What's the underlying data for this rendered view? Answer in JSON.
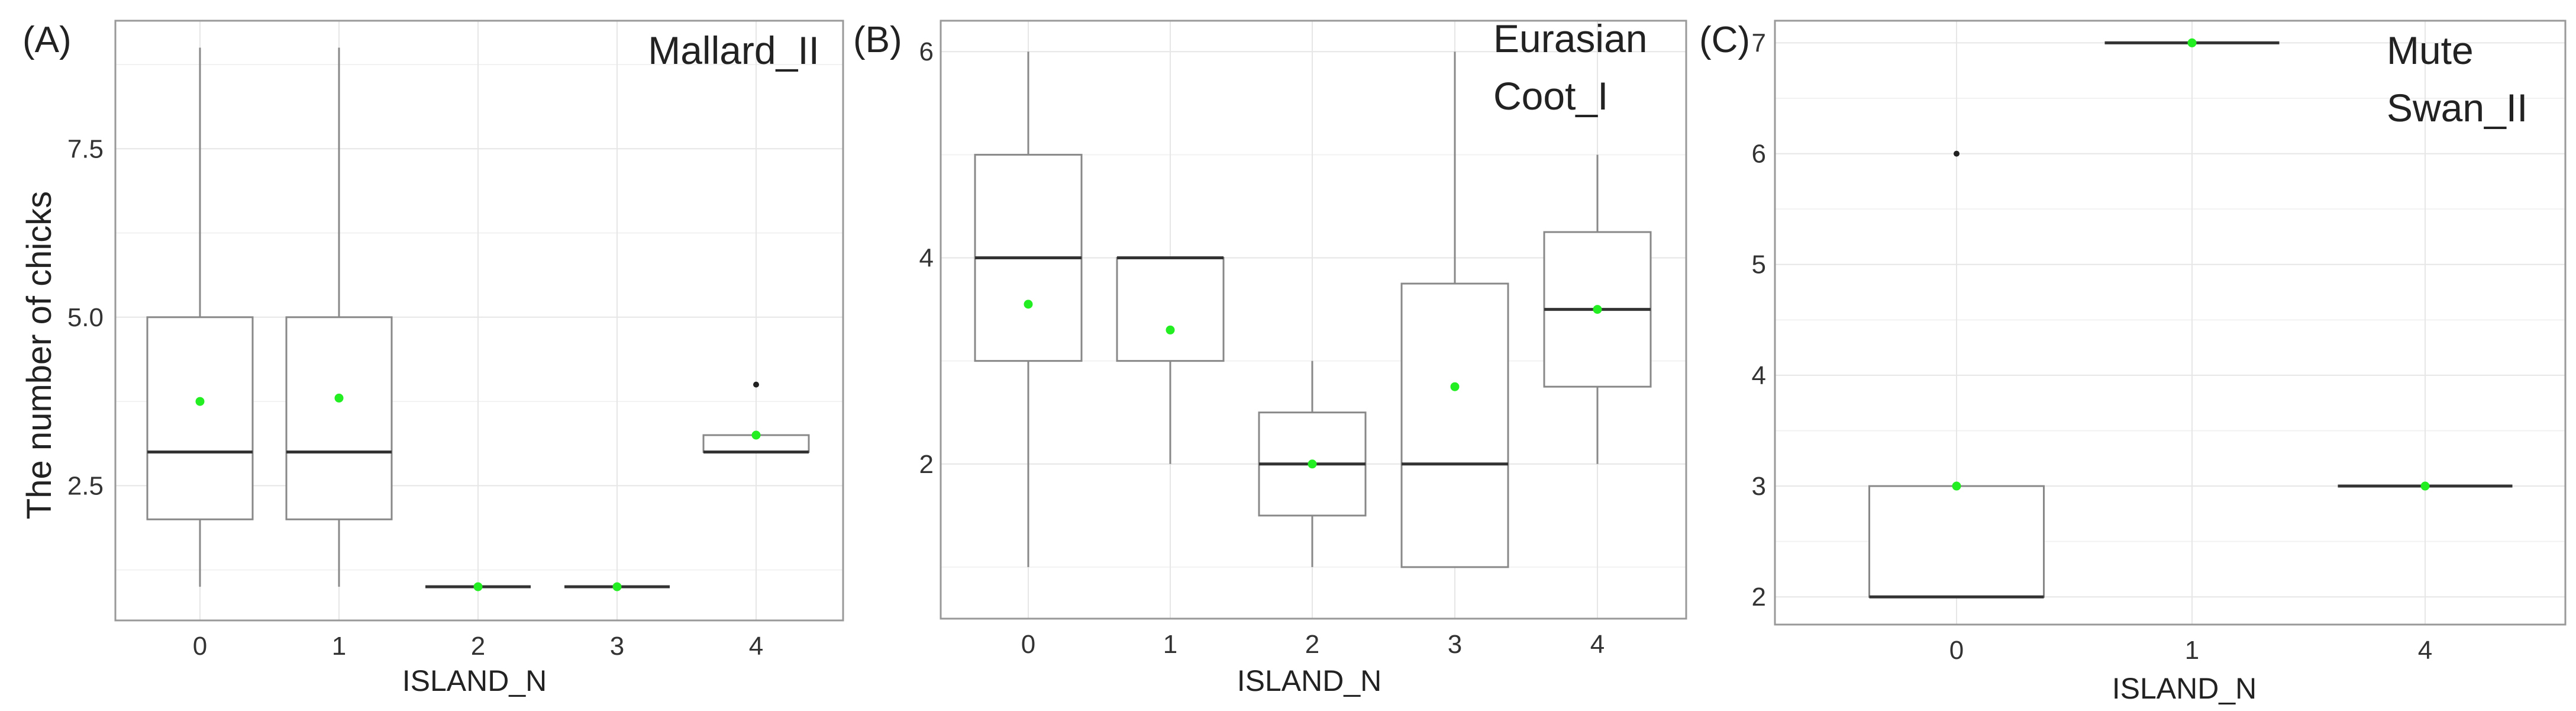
{
  "chart_data": [
    {
      "type": "box",
      "panel_label": "(A)",
      "title": "Mallard_II",
      "xlabel": "ISLAND_N",
      "ylabel": "The number of chicks",
      "categories": [
        "0",
        "1",
        "2",
        "3",
        "4"
      ],
      "ylim": [
        0.5,
        9.4
      ],
      "yticks": [
        2.5,
        5.0,
        7.5
      ],
      "ytick_labels": [
        "2.5",
        "5.0",
        "7.5"
      ],
      "grid": true,
      "boxes": [
        {
          "x": "0",
          "min": 1,
          "q1": 2,
          "median": 3,
          "q3": 5,
          "max": 9,
          "mean": 3.75,
          "outliers": []
        },
        {
          "x": "1",
          "min": 1,
          "q1": 2,
          "median": 3,
          "q3": 5,
          "max": 9,
          "mean": 3.8,
          "outliers": []
        },
        {
          "x": "2",
          "min": 1,
          "q1": 1,
          "median": 1,
          "q3": 1,
          "max": 1,
          "mean": 1,
          "outliers": []
        },
        {
          "x": "3",
          "min": 1,
          "q1": 1,
          "median": 1,
          "q3": 1,
          "max": 1,
          "mean": 1,
          "outliers": []
        },
        {
          "x": "4",
          "min": 3,
          "q1": 3,
          "median": 3,
          "q3": 3.25,
          "max": 3.25,
          "mean": 3.25,
          "outliers": [
            4
          ]
        }
      ],
      "colors": {
        "box": "#888888",
        "median": "#333333",
        "mean": "#22ee22",
        "outlier": "#222222"
      }
    },
    {
      "type": "box",
      "panel_label": "(B)",
      "title_lines": [
        "Eurasian",
        "Coot_I"
      ],
      "xlabel": "ISLAND_N",
      "ylabel": "",
      "categories": [
        "0",
        "1",
        "2",
        "3",
        "4"
      ],
      "ylim": [
        0.5,
        6.3
      ],
      "yticks": [
        2,
        4,
        6
      ],
      "ytick_labels": [
        "2",
        "4",
        "6"
      ],
      "grid": true,
      "boxes": [
        {
          "x": "0",
          "min": 1,
          "q1": 3,
          "median": 4,
          "q3": 5,
          "max": 6,
          "mean": 3.55,
          "outliers": []
        },
        {
          "x": "1",
          "min": 2,
          "q1": 3,
          "median": 4,
          "q3": 4,
          "max": 4,
          "mean": 3.3,
          "outliers": []
        },
        {
          "x": "2",
          "min": 1,
          "q1": 1.5,
          "median": 2,
          "q3": 2.5,
          "max": 3,
          "mean": 2,
          "outliers": []
        },
        {
          "x": "3",
          "min": 1,
          "q1": 1,
          "median": 2,
          "q3": 3.75,
          "max": 6,
          "mean": 2.75,
          "outliers": []
        },
        {
          "x": "4",
          "min": 2,
          "q1": 2.75,
          "median": 3.5,
          "q3": 4.25,
          "max": 5,
          "mean": 3.5,
          "outliers": []
        }
      ],
      "colors": {
        "box": "#888888",
        "median": "#333333",
        "mean": "#22ee22",
        "outlier": "#222222"
      }
    },
    {
      "type": "box",
      "panel_label": "(C)",
      "title_lines": [
        "Mute",
        "Swan_II"
      ],
      "xlabel": "ISLAND_N",
      "ylabel": "",
      "categories": [
        "0",
        "1",
        "4"
      ],
      "ylim": [
        1.75,
        7.2
      ],
      "yticks": [
        2,
        3,
        4,
        5,
        6,
        7
      ],
      "ytick_labels": [
        "2",
        "3",
        "4",
        "5",
        "6",
        "7"
      ],
      "grid": true,
      "boxes": [
        {
          "x": "0",
          "min": 2,
          "q1": 2,
          "median": 2,
          "q3": 3,
          "max": 3,
          "mean": 3,
          "outliers": [
            6
          ]
        },
        {
          "x": "1",
          "min": 7,
          "q1": 7,
          "median": 7,
          "q3": 7,
          "max": 7,
          "mean": 7,
          "outliers": []
        },
        {
          "x": "4",
          "min": 3,
          "q1": 3,
          "median": 3,
          "q3": 3,
          "max": 3,
          "mean": 3,
          "outliers": []
        }
      ],
      "colors": {
        "box": "#888888",
        "median": "#333333",
        "mean": "#22ee22",
        "outlier": "#222222"
      }
    }
  ]
}
